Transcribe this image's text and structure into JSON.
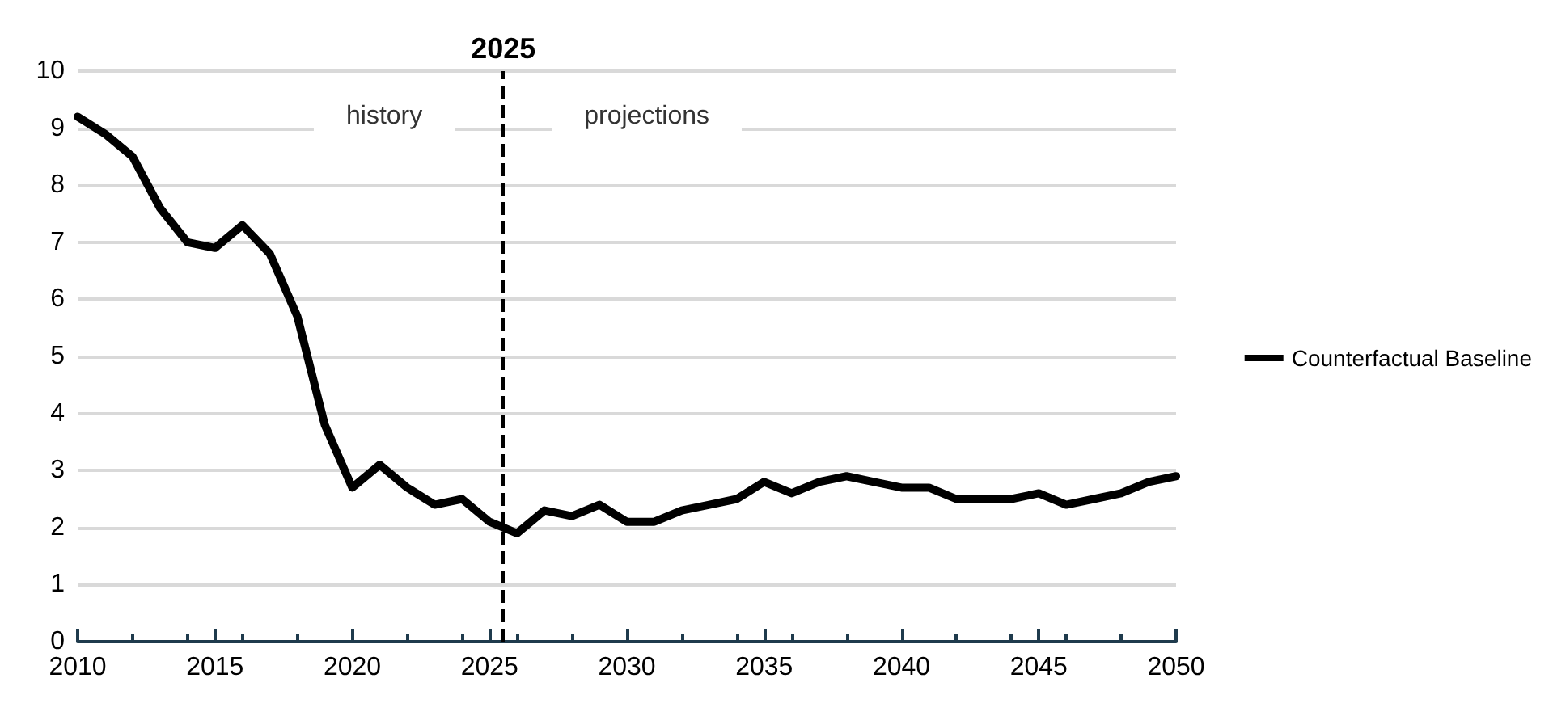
{
  "chart_data": {
    "type": "line",
    "x": [
      2010,
      2011,
      2012,
      2013,
      2014,
      2015,
      2016,
      2017,
      2018,
      2019,
      2020,
      2021,
      2022,
      2023,
      2024,
      2025,
      2026,
      2027,
      2028,
      2029,
      2030,
      2031,
      2032,
      2033,
      2034,
      2035,
      2036,
      2037,
      2038,
      2039,
      2040,
      2041,
      2042,
      2043,
      2044,
      2045,
      2046,
      2047,
      2048,
      2049,
      2050
    ],
    "series": [
      {
        "name": "Counterfactual Baseline",
        "color": "#000000",
        "values": [
          9.2,
          8.9,
          8.5,
          7.6,
          7.0,
          6.9,
          7.3,
          6.8,
          5.7,
          3.8,
          2.7,
          3.1,
          2.7,
          2.4,
          2.5,
          2.1,
          1.9,
          2.3,
          2.2,
          2.4,
          2.1,
          2.1,
          2.3,
          2.4,
          2.5,
          2.8,
          2.6,
          2.8,
          2.9,
          2.8,
          2.7,
          2.7,
          2.5,
          2.5,
          2.5,
          2.6,
          2.4,
          2.5,
          2.6,
          2.8,
          2.9
        ]
      }
    ],
    "xlim": [
      2010,
      2050
    ],
    "xticks": [
      2010,
      2015,
      2020,
      2025,
      2030,
      2035,
      2040,
      2045,
      2050
    ],
    "ylim": [
      0,
      10
    ],
    "yticks": [
      0,
      1,
      2,
      3,
      4,
      5,
      6,
      7,
      8,
      9,
      10
    ],
    "grid": "y",
    "legend": "right",
    "marker": "none",
    "line_style": "solid",
    "ref_lines": [
      {
        "axis": "x",
        "value": 2025.5,
        "label": "2025",
        "color": "#000000",
        "line_style": "dashed"
      }
    ],
    "annotations": [
      "history",
      "projections"
    ]
  }
}
